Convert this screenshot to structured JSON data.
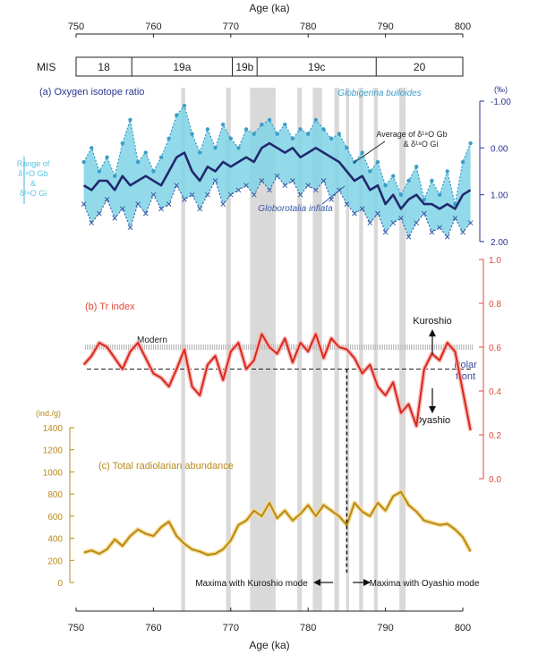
{
  "chart_data": {
    "type": "line",
    "title": "",
    "xlabel": "Age (ka)",
    "x_range": [
      750,
      800
    ],
    "x_ticks": [
      750,
      760,
      770,
      780,
      790,
      800
    ],
    "mis": {
      "label": "MIS",
      "stages": [
        {
          "name": "18",
          "from": 750,
          "to": 757.2
        },
        {
          "name": "19a",
          "from": 757.2,
          "to": 770.2
        },
        {
          "name": "19b",
          "from": 770.2,
          "to": 773.4
        },
        {
          "name": "19c",
          "from": 773.4,
          "to": 788.8
        },
        {
          "name": "20",
          "from": 788.8,
          "to": 800
        }
      ]
    },
    "gray_bands": [
      [
        763.6,
        764.1
      ],
      [
        769.4,
        770.0
      ],
      [
        772.5,
        775.8
      ],
      [
        778.6,
        779.2
      ],
      [
        780.6,
        781.8
      ],
      [
        783.4,
        784.0
      ],
      [
        784.9,
        785.3
      ],
      [
        786.6,
        787.1
      ],
      [
        788.5,
        789.0
      ],
      [
        791.8,
        792.6
      ]
    ],
    "panel_a": {
      "title": "(a) Oxygen isotope ratio",
      "unit": "(‰)",
      "y_range": [
        -1.0,
        2.0
      ],
      "y_ticks": [
        "-1.00",
        "0.00",
        "1.00",
        "2.00"
      ],
      "range_label": [
        "Range of",
        "δ¹⁸O Gb",
        "&",
        "δ¹⁸O Gi"
      ],
      "annotation_bulloides": "Globigerina bulloides",
      "annotation_inflata": "Globorotalia inflata",
      "annotation_average_line1": "Average of δ¹⁸O Gb",
      "annotation_average_line2": "& δ¹⁸O Gi",
      "series": [
        {
          "name": "Globigerina bulloides",
          "x": [
            751,
            752,
            753,
            754,
            755,
            756,
            757,
            758,
            759,
            760,
            761,
            762,
            763,
            764,
            765,
            766,
            767,
            768,
            769,
            770,
            771,
            772,
            773,
            774,
            775,
            776,
            777,
            778,
            779,
            780,
            781,
            782,
            783,
            784,
            785,
            786,
            787,
            788,
            789,
            790,
            791,
            792,
            793,
            794,
            795,
            796,
            797,
            798,
            799,
            800,
            801
          ],
          "values": [
            0.3,
            0.0,
            0.5,
            0.2,
            0.6,
            -0.1,
            -0.6,
            0.3,
            0.1,
            0.5,
            0.2,
            -0.2,
            -0.7,
            -0.9,
            -0.3,
            0.1,
            -0.4,
            0.0,
            -0.5,
            -0.2,
            0.0,
            -0.4,
            -0.3,
            -0.5,
            -0.6,
            -0.3,
            -0.5,
            -0.2,
            -0.4,
            -0.3,
            -0.6,
            -0.4,
            -0.2,
            -0.3,
            0.0,
            0.3,
            0.1,
            0.5,
            0.3,
            0.8,
            0.6,
            1.0,
            0.7,
            0.4,
            1.1,
            0.7,
            1.0,
            0.5,
            1.2,
            0.3,
            -0.1
          ]
        },
        {
          "name": "Globorotalia inflata",
          "x": [
            751,
            752,
            753,
            754,
            755,
            756,
            757,
            758,
            759,
            760,
            761,
            762,
            763,
            764,
            765,
            766,
            767,
            768,
            769,
            770,
            771,
            772,
            773,
            774,
            775,
            776,
            777,
            778,
            779,
            780,
            781,
            782,
            783,
            784,
            785,
            786,
            787,
            788,
            789,
            790,
            791,
            792,
            793,
            794,
            795,
            796,
            797,
            798,
            799,
            800,
            801
          ],
          "values": [
            1.2,
            1.6,
            1.4,
            1.1,
            1.5,
            1.3,
            1.7,
            1.2,
            1.4,
            1.0,
            1.3,
            1.2,
            0.8,
            1.1,
            1.0,
            1.3,
            1.0,
            0.7,
            1.2,
            1.0,
            0.9,
            0.8,
            1.0,
            0.7,
            0.9,
            0.6,
            0.8,
            0.7,
            1.0,
            0.8,
            0.9,
            0.7,
            1.1,
            0.9,
            1.2,
            1.4,
            1.3,
            1.6,
            1.4,
            1.8,
            1.6,
            1.5,
            1.9,
            1.6,
            1.4,
            1.8,
            1.7,
            1.9,
            1.5,
            1.8,
            1.6
          ]
        },
        {
          "name": "Average of δ18O Gb & δ18O Gi",
          "x": [
            751,
            752,
            753,
            754,
            755,
            756,
            757,
            758,
            759,
            760,
            761,
            762,
            763,
            764,
            765,
            766,
            767,
            768,
            769,
            770,
            771,
            772,
            773,
            774,
            775,
            776,
            777,
            778,
            779,
            780,
            781,
            782,
            783,
            784,
            785,
            786,
            787,
            788,
            789,
            790,
            791,
            792,
            793,
            794,
            795,
            796,
            797,
            798,
            799,
            800,
            801
          ],
          "values": [
            0.8,
            0.9,
            0.7,
            0.7,
            0.9,
            0.6,
            0.8,
            0.7,
            0.6,
            0.7,
            0.8,
            0.5,
            0.2,
            0.1,
            0.5,
            0.7,
            0.4,
            0.5,
            0.3,
            0.4,
            0.3,
            0.2,
            0.3,
            0.0,
            -0.1,
            0.0,
            0.1,
            0.0,
            0.2,
            0.1,
            0.0,
            0.1,
            0.2,
            0.3,
            0.5,
            0.7,
            0.6,
            0.9,
            0.8,
            1.2,
            1.0,
            1.3,
            1.1,
            1.0,
            1.2,
            1.2,
            1.3,
            1.2,
            1.3,
            1.0,
            0.9
          ]
        }
      ]
    },
    "panel_b": {
      "title": "(b) Tr index",
      "y_range": [
        0.0,
        1.0
      ],
      "y_ticks": [
        "0.0",
        "0.2",
        "0.4",
        "0.6",
        "0.8",
        "1.0"
      ],
      "modern_label": "Modern",
      "modern_value": 0.6,
      "polar_front_value": 0.5,
      "polar_front_label": [
        "Polar",
        "front"
      ],
      "kuroshio_label": "Kuroshio",
      "oyashio_label": "Oyashio",
      "series": [
        {
          "name": "Tr index",
          "x": [
            751,
            752,
            753,
            754,
            755,
            756,
            757,
            758,
            759,
            760,
            761,
            762,
            763,
            764,
            765,
            766,
            767,
            768,
            769,
            770,
            771,
            772,
            773,
            774,
            775,
            776,
            777,
            778,
            779,
            780,
            781,
            782,
            783,
            784,
            785,
            786,
            787,
            788,
            789,
            790,
            791,
            792,
            793,
            794,
            795,
            796,
            797,
            798,
            799,
            800,
            801
          ],
          "values": [
            0.52,
            0.56,
            0.62,
            0.6,
            0.55,
            0.5,
            0.58,
            0.62,
            0.55,
            0.48,
            0.46,
            0.42,
            0.5,
            0.59,
            0.42,
            0.38,
            0.52,
            0.56,
            0.45,
            0.58,
            0.62,
            0.5,
            0.54,
            0.66,
            0.6,
            0.57,
            0.64,
            0.53,
            0.62,
            0.58,
            0.66,
            0.55,
            0.64,
            0.6,
            0.59,
            0.55,
            0.48,
            0.52,
            0.42,
            0.38,
            0.44,
            0.3,
            0.34,
            0.24,
            0.5,
            0.57,
            0.54,
            0.62,
            0.58,
            0.4,
            0.22
          ]
        }
      ]
    },
    "panel_c": {
      "title": "(c) Total radiolarian abundance",
      "unit": "(ind./g)",
      "y_range": [
        0,
        1400
      ],
      "y_ticks": [
        "0",
        "200",
        "400",
        "600",
        "800",
        "1000",
        "1200",
        "1400"
      ],
      "maxima_kuroshio": "Maxima with Kuroshio mode",
      "maxima_oyashio": "Maxima with Oyashio mode",
      "divide_age": 785,
      "series": [
        {
          "name": "Total radiolarian abundance",
          "x": [
            751,
            752,
            753,
            754,
            755,
            756,
            757,
            758,
            759,
            760,
            761,
            762,
            763,
            764,
            765,
            766,
            767,
            768,
            769,
            770,
            771,
            772,
            773,
            774,
            775,
            776,
            777,
            778,
            779,
            780,
            781,
            782,
            783,
            784,
            785,
            786,
            787,
            788,
            789,
            790,
            791,
            792,
            793,
            794,
            795,
            796,
            797,
            798,
            799,
            800,
            801
          ],
          "values": [
            270,
            290,
            260,
            300,
            390,
            330,
            420,
            480,
            440,
            420,
            500,
            550,
            420,
            350,
            300,
            280,
            250,
            260,
            300,
            380,
            520,
            560,
            650,
            600,
            720,
            580,
            650,
            560,
            620,
            700,
            600,
            700,
            650,
            600,
            520,
            720,
            640,
            600,
            720,
            650,
            780,
            820,
            700,
            640,
            560,
            540,
            520,
            530,
            480,
            410,
            280
          ]
        }
      ]
    }
  }
}
